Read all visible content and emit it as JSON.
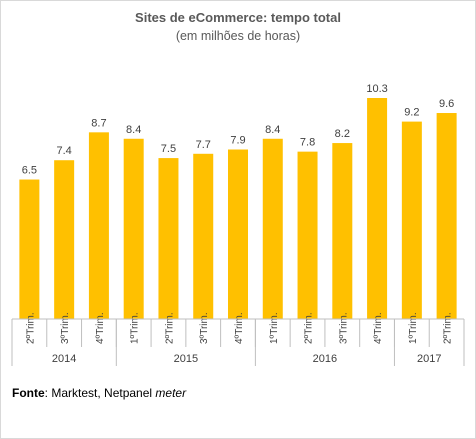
{
  "header": {
    "title": "Sites de eCommerce: tempo total",
    "subtitle": "(em milhões de horas)"
  },
  "source": {
    "label": "Fonte",
    "sep": ":",
    "text": " Marktest, Netpanel ",
    "emphasis": "meter"
  },
  "colors": {
    "bar": "#FFC000",
    "axis": "#bfbfbf",
    "text": "#404040"
  },
  "chart_data": {
    "type": "bar",
    "title": "Sites de eCommerce: tempo total",
    "subtitle": "(em milhões de horas)",
    "categories": [
      "2ºTrim.",
      "3ºTrim.",
      "4ºTrim.",
      "1ºTrim.",
      "2ºTrim.",
      "3ºTrim.",
      "4ºTrim.",
      "1ºTrim.",
      "2ºTrim.",
      "3ºTrim.",
      "4ºTrim.",
      "1ºTrim.",
      "2ºTrim."
    ],
    "values": [
      6.5,
      7.4,
      8.7,
      8.4,
      7.5,
      7.7,
      7.9,
      8.4,
      7.8,
      8.2,
      10.3,
      9.2,
      9.6
    ],
    "value_labels": [
      "6.5",
      "7.4",
      "8.7",
      "8.4",
      "7.5",
      "7.7",
      "7.9",
      "8.4",
      "7.8",
      "8.2",
      "10.3",
      "9.2",
      "9.6"
    ],
    "groups": [
      {
        "label": "2014",
        "count": 3
      },
      {
        "label": "2015",
        "count": 4
      },
      {
        "label": "2016",
        "count": 4
      },
      {
        "label": "2017",
        "count": 2
      }
    ],
    "ylim": [
      0,
      10.3
    ],
    "grid": false,
    "legend": "none"
  }
}
